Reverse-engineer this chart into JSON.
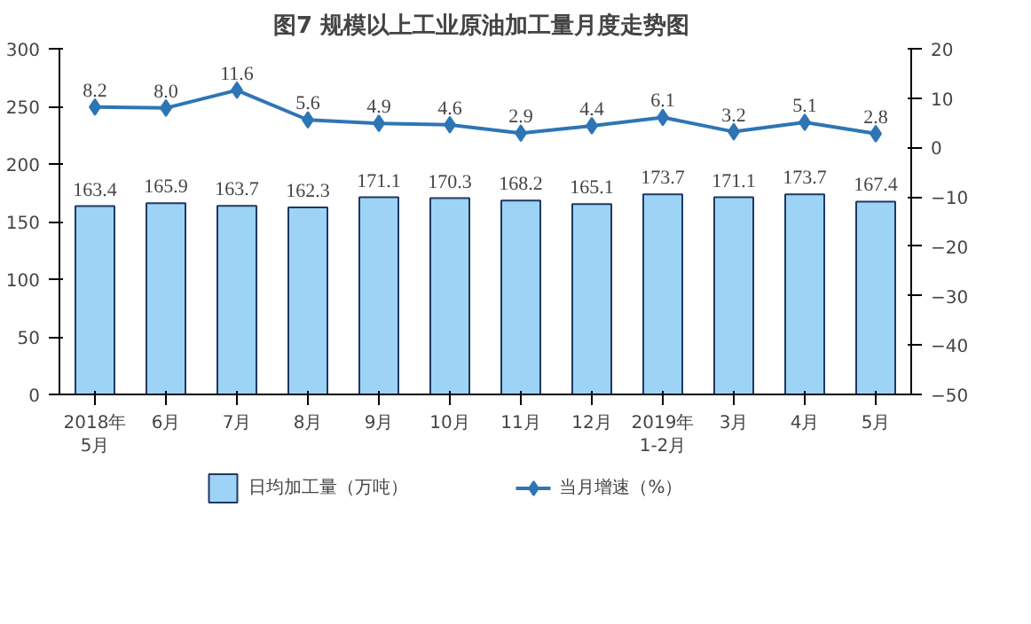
{
  "chart_data": {
    "type": "bar",
    "title": "图7  规模以上工业原油加工量月度走势图",
    "categories": [
      "2018年\n5月",
      "6月",
      "7月",
      "8月",
      "9月",
      "10月",
      "11月",
      "12月",
      "2019年\n1-2月",
      "3月",
      "4月",
      "5月"
    ],
    "series": [
      {
        "name": "日均加工量（万吨）",
        "color": "#9dd3f5",
        "values": [
          163.4,
          165.9,
          163.7,
          162.3,
          171.1,
          170.3,
          168.2,
          165.1,
          173.7,
          171.1,
          173.7,
          167.4
        ]
      },
      {
        "name": "当月增速（%）",
        "type": "line",
        "axis": "y2",
        "color": "#2e75b6",
        "values": [
          8.2,
          8.0,
          11.6,
          5.6,
          4.9,
          4.6,
          2.9,
          4.4,
          6.1,
          3.2,
          5.1,
          2.8
        ],
        "value_labels": [
          "8.2",
          "8.0",
          "11.6",
          "5.6",
          "4.9",
          "4.6",
          "2.9",
          "4.4",
          "6.1",
          "3.2",
          "5.1",
          "2.8"
        ]
      }
    ],
    "ylim": [
      0,
      300
    ],
    "yticks": [
      0,
      50,
      100,
      150,
      200,
      250,
      300
    ],
    "y2lim": [
      -50,
      20
    ],
    "y2ticks": [
      -50,
      -40,
      -30,
      -20,
      -10,
      0,
      10,
      20
    ],
    "data_labels": true,
    "marker": "diamond",
    "line_style": "solid",
    "grid": false,
    "legend": "bottom"
  }
}
